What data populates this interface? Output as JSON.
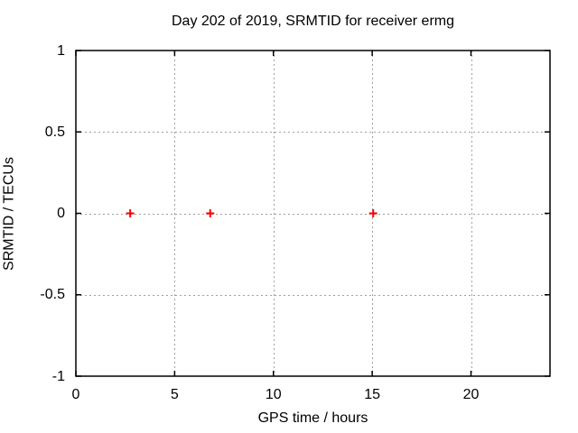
{
  "chart_data": {
    "type": "scatter",
    "title": "Day 202 of 2019, SRMTID for receiver ermg",
    "xlabel": "GPS time / hours",
    "ylabel": "SRMTID / TECUs",
    "xlim": [
      0,
      24
    ],
    "ylim": [
      -1,
      1
    ],
    "xticks": [
      {
        "value": 0,
        "label": "0"
      },
      {
        "value": 5,
        "label": "5"
      },
      {
        "value": 10,
        "label": "10"
      },
      {
        "value": 15,
        "label": "15"
      },
      {
        "value": 20,
        "label": "20"
      }
    ],
    "yticks": [
      {
        "value": -1,
        "label": "-1"
      },
      {
        "value": -0.5,
        "label": "-0.5"
      },
      {
        "value": 0,
        "label": "0"
      },
      {
        "value": 0.5,
        "label": "0.5"
      },
      {
        "value": 1,
        "label": "1"
      }
    ],
    "grid": true,
    "legend": "none",
    "series": [
      {
        "marker": "plus",
        "color": "#ff0000",
        "points": [
          [
            2.75,
            0
          ],
          [
            6.8,
            0
          ],
          [
            15.05,
            0
          ]
        ]
      }
    ],
    "colors": {
      "frame": "#000000",
      "grid": "#a0a0a0",
      "text": "#000000",
      "background": "#ffffff"
    }
  }
}
